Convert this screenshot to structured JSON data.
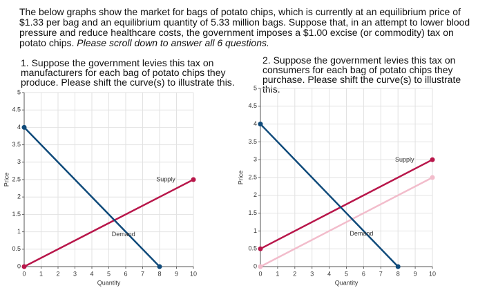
{
  "intro": {
    "text": "The below graphs show the market for bags of potato chips, which is currently at an equilibrium price of $1.33 per bag and an equilibrium quantity of 5.33 million bags. Suppose that, in an attempt to lower blood pressure and reduce healthcare costs, the government imposes a $1.00 excise (or commodity) tax on potato chips.",
    "emphasis": "Please scroll down to answer all 6 questions."
  },
  "chart_data": [
    {
      "type": "line",
      "title": "1. Suppose the government levies this tax on manufacturers for each bag of potato chips they produce. Please shift the curve(s) to illustrate this.",
      "x_label": "Quantity",
      "y_label": "Price",
      "xlim": [
        0,
        10
      ],
      "ylim": [
        0,
        5
      ],
      "xticks": [
        0,
        1,
        2,
        3,
        4,
        5,
        6,
        7,
        8,
        9,
        10
      ],
      "yticks": [
        0,
        0.5,
        1,
        1.5,
        2,
        2.5,
        3,
        3.5,
        4,
        4.5,
        5
      ],
      "grid": true,
      "series": [
        {
          "name": "Supply",
          "color": "#b8164a",
          "x": [
            0,
            10
          ],
          "values": [
            0,
            2.5
          ]
        },
        {
          "name": "Demand",
          "color": "#0f4a7a",
          "x": [
            0,
            8
          ],
          "values": [
            4,
            0
          ]
        }
      ]
    },
    {
      "type": "line",
      "title": "2. Suppose the government levies this tax on consumers for each bag of potato chips they purchase. Please shift the curve(s) to illustrate this.",
      "x_label": "Quantity",
      "y_label": "Price",
      "xlim": [
        0,
        10
      ],
      "ylim": [
        0,
        5
      ],
      "xticks": [
        0,
        1,
        2,
        3,
        4,
        5,
        6,
        7,
        8,
        9,
        10
      ],
      "yticks": [
        0,
        0.5,
        1,
        1.5,
        2,
        2.5,
        3,
        3.5,
        4,
        4.5,
        5
      ],
      "grid": true,
      "series": [
        {
          "color": "#f2bccb",
          "x": [
            0,
            10
          ],
          "values": [
            0,
            2.5
          ]
        },
        {
          "name": "Supply",
          "color": "#b8164a",
          "x": [
            0,
            10
          ],
          "values": [
            0.5,
            3
          ]
        },
        {
          "name": "Demand",
          "color": "#0f4a7a",
          "x": [
            0,
            8
          ],
          "values": [
            4,
            0
          ]
        }
      ]
    }
  ]
}
